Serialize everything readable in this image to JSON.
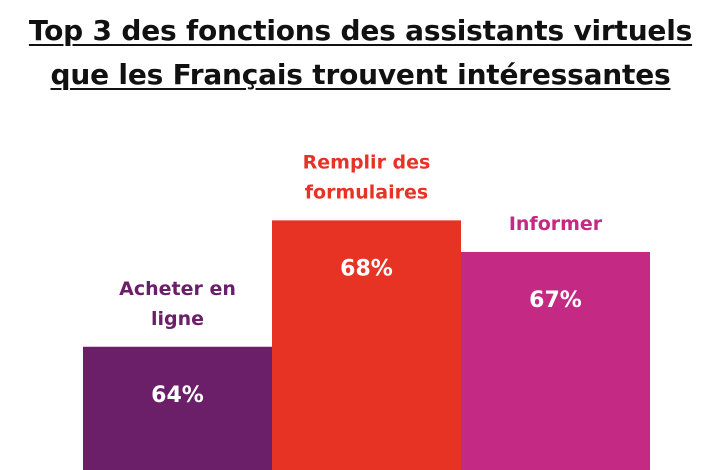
{
  "title": {
    "line1": "Top 3 des fonctions des assistants virtuels",
    "line2": "que les Français trouvent intéressantes"
  },
  "chart_data": {
    "type": "bar",
    "title": "Top 3 des fonctions des assistants virtuels que les Français trouvent intéressantes",
    "categories": [
      [
        "Acheter en",
        "ligne"
      ],
      [
        "Remplir des",
        "formulaires"
      ],
      [
        "Informer"
      ]
    ],
    "values": [
      64,
      68,
      67
    ],
    "value_labels": [
      "64%",
      "68%",
      "67%"
    ],
    "colors": [
      "#6a1f68",
      "#e63324",
      "#c42a84"
    ],
    "label_colors": [
      "#6a1f68",
      "#e63324",
      "#c42a84"
    ],
    "unit": "%",
    "grid": false,
    "legend": "none"
  }
}
